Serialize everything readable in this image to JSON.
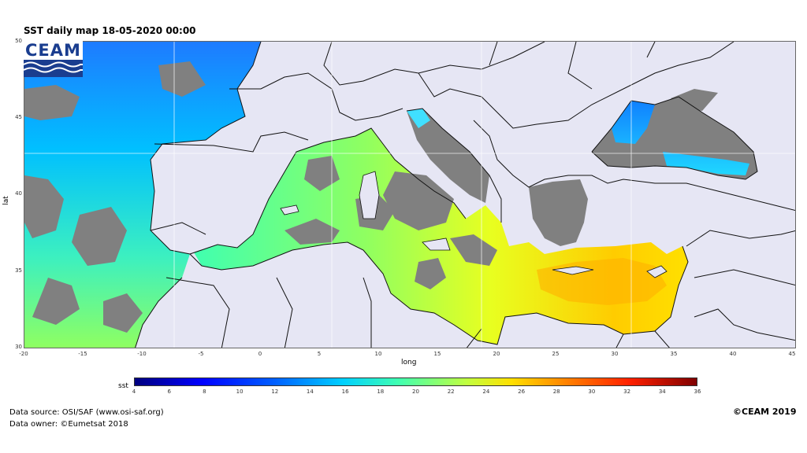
{
  "title": "SST daily map 18-05-2020  00:00",
  "logo": {
    "text": "CEAM"
  },
  "axes": {
    "xlabel": "long",
    "ylabel": "lat",
    "xticks": [
      "-20",
      "-15",
      "-10",
      "-5",
      "0",
      "5",
      "10",
      "15",
      "20",
      "25",
      "30",
      "35",
      "40",
      "45"
    ],
    "yticks": [
      "50",
      "45",
      "40",
      "35",
      "30"
    ]
  },
  "colorbar": {
    "label": "sst",
    "ticks": [
      "4",
      "6",
      "8",
      "10",
      "12",
      "14",
      "16",
      "18",
      "20",
      "22",
      "24",
      "26",
      "28",
      "30",
      "32",
      "34",
      "36"
    ],
    "range": [
      4,
      36
    ]
  },
  "footer": {
    "source_line": "Data source: OSI/SAF (www.osi-saf.org)",
    "owner_line": "Data owner: ©Eumetsat 2018",
    "copyright": "©CEAM 2019"
  },
  "colors": {
    "land": "#e6e6f4",
    "no_data": "#808080",
    "border": "#111111"
  }
}
